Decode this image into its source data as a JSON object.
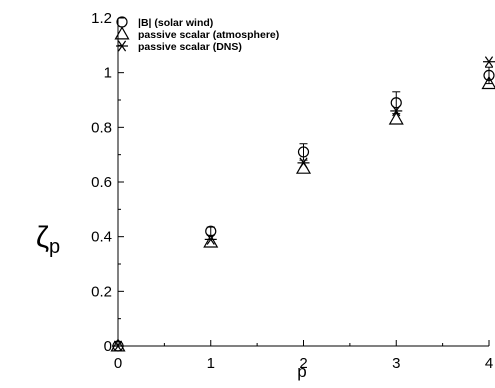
{
  "chart_data": {
    "type": "scatter",
    "title": "",
    "xlabel": "p",
    "ylabel": "ζ_p",
    "xlim": [
      0,
      4
    ],
    "ylim": [
      0,
      1.2
    ],
    "xticks": [
      0,
      1,
      2,
      3,
      4
    ],
    "xtick_labels": [
      "0",
      "1",
      "2",
      "3",
      "4"
    ],
    "yticks": [
      0,
      0.2,
      0.4,
      0.6,
      0.8,
      1,
      1.2
    ],
    "ytick_labels": [
      "0",
      "0.2",
      "0.4",
      "0.6",
      "0.8",
      "1",
      "1.2"
    ],
    "grid": false,
    "legend_position": "top-left",
    "series": [
      {
        "name": "|B| (solar wind)",
        "marker": "circle",
        "color": "#000000",
        "x": [
          0,
          1,
          2,
          3,
          4
        ],
        "y": [
          0,
          0.42,
          0.71,
          0.89,
          0.99
        ],
        "error": [
          0,
          0.015,
          0.03,
          0.04,
          0.03
        ]
      },
      {
        "name": "passive scalar (atmosphere)",
        "marker": "triangle",
        "color": "#000000",
        "x": [
          0,
          1,
          2,
          3,
          4
        ],
        "y": [
          0,
          0.38,
          0.65,
          0.83,
          0.96
        ],
        "error": [
          0,
          0,
          0,
          0,
          0
        ]
      },
      {
        "name": "passive scalar (DNS)",
        "marker": "asterisk",
        "color": "#000000",
        "x": [
          0,
          1,
          2,
          3,
          4
        ],
        "y": [
          0,
          0.39,
          0.67,
          0.86,
          1.04
        ],
        "error": [
          0,
          0,
          0,
          0,
          0
        ]
      }
    ]
  }
}
